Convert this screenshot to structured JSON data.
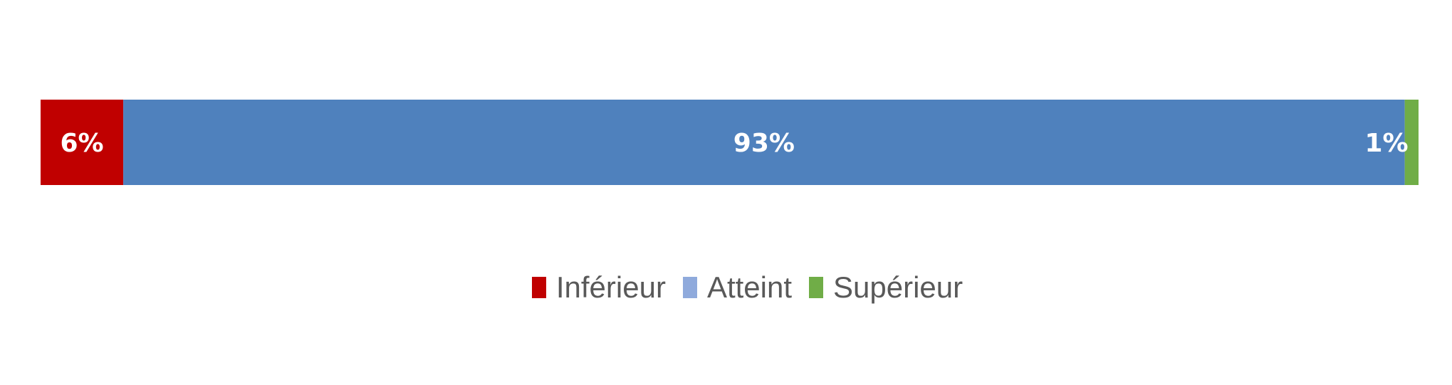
{
  "chart_data": {
    "type": "bar",
    "orientation": "horizontal",
    "stacked": "100%",
    "categories": [
      ""
    ],
    "series": [
      {
        "name": "Inférieur",
        "values": [
          6
        ],
        "label": "6%",
        "color": "#C00000",
        "legend_color": "#C00000"
      },
      {
        "name": "Atteint",
        "values": [
          93
        ],
        "label": "93%",
        "color": "#4F81BD",
        "legend_color": "#8FAADC"
      },
      {
        "name": "Supérieur",
        "values": [
          1
        ],
        "label": "1%",
        "color": "#70AD47",
        "legend_color": "#70AD47"
      }
    ],
    "xlim": [
      0,
      100
    ],
    "grid": false,
    "axes_visible": false,
    "legend_position": "bottom",
    "label_color": "#FFFFFF",
    "legend_text_color": "#595959"
  }
}
